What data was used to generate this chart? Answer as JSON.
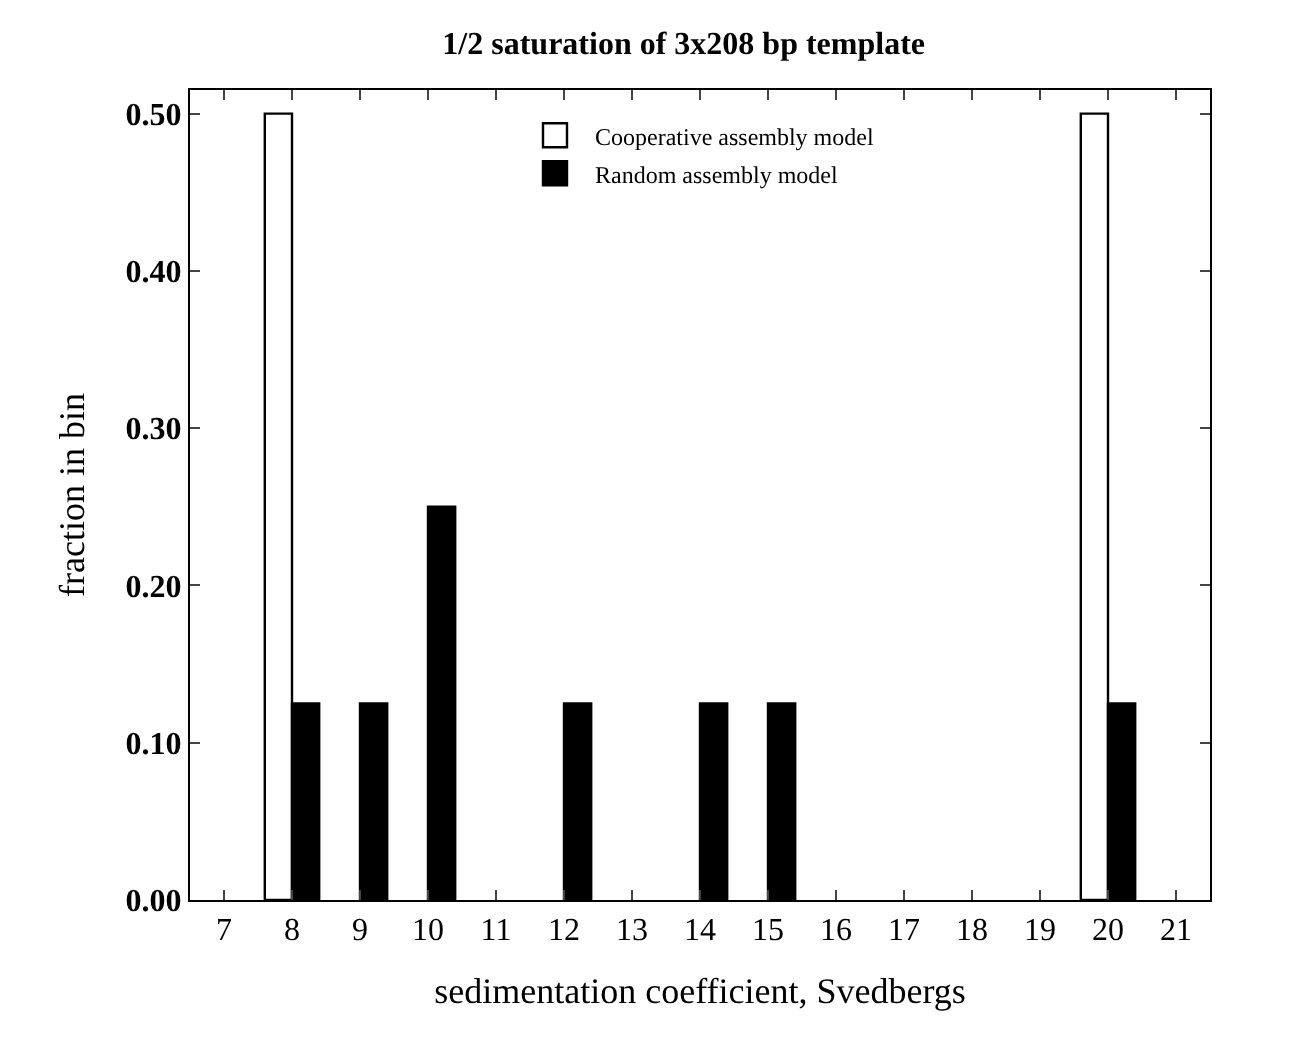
{
  "chart_data": {
    "type": "bar",
    "title": "1/2 saturation of 3x208 bp template",
    "xlabel": "sedimentation coefficient, Svedbergs",
    "ylabel": "fraction in bin",
    "categories": [
      "7",
      "8",
      "9",
      "10",
      "11",
      "12",
      "13",
      "14",
      "15",
      "16",
      "17",
      "18",
      "19",
      "20",
      "21"
    ],
    "series": [
      {
        "name": "Cooperative assembly model",
        "color": "#ffffff",
        "values": [
          null,
          0.5,
          null,
          null,
          null,
          null,
          null,
          null,
          null,
          null,
          null,
          null,
          null,
          0.5,
          null
        ]
      },
      {
        "name": "Random assembly model",
        "color": "#000000",
        "values": [
          null,
          0.125,
          0.125,
          0.25,
          null,
          0.125,
          null,
          0.125,
          0.125,
          null,
          null,
          null,
          null,
          0.125,
          null
        ]
      }
    ],
    "ylim": [
      0,
      0.515
    ],
    "yticks": [
      {
        "value": 0,
        "label": "0.00"
      },
      {
        "value": 0.1,
        "label": "0.10"
      },
      {
        "value": 0.2,
        "label": "0.20"
      },
      {
        "value": 0.3,
        "label": "0.30"
      },
      {
        "value": 0.4,
        "label": "0.40"
      },
      {
        "value": 0.5,
        "label": "0.50"
      }
    ],
    "legend": "top"
  }
}
